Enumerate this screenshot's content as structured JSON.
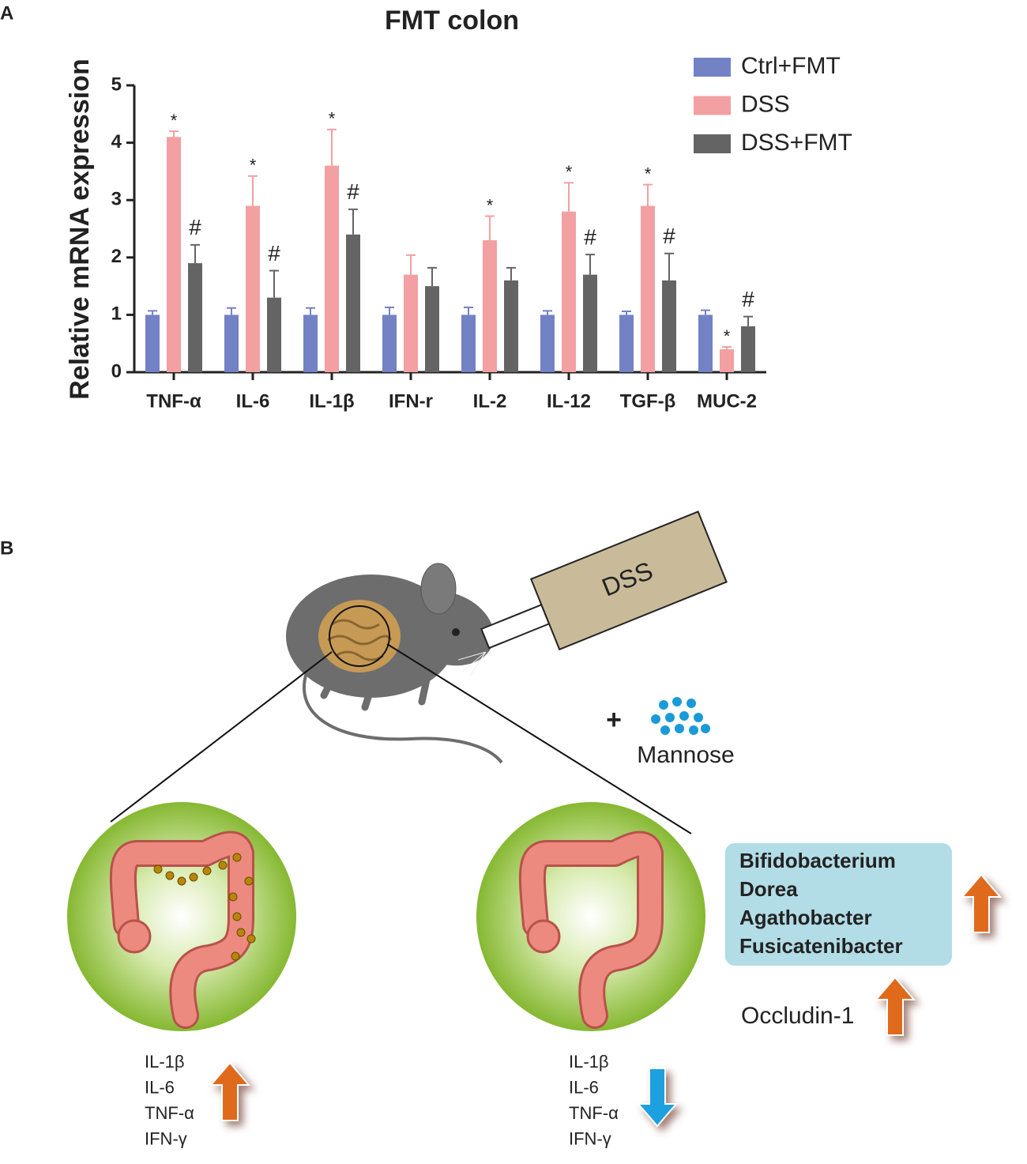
{
  "panel_labels": [
    "A",
    "B"
  ],
  "chart_data": {
    "type": "bar",
    "title": "FMT colon",
    "y_label": "Relative mRNA expression",
    "categories": [
      "TNF-α",
      "IL-6",
      "IL-1β",
      "IFN-r",
      "IL-2",
      "IL-12",
      "TGF-β",
      "MUC-2"
    ],
    "series": [
      {
        "name": "Ctrl+FMT",
        "color": "#7382c4",
        "values": [
          1,
          1,
          1,
          1,
          1,
          1,
          1,
          1
        ],
        "errors": [
          0.07,
          0.12,
          0.12,
          0.13,
          0.13,
          0.07,
          0.06,
          0.08
        ],
        "annotations": [
          null,
          null,
          null,
          null,
          null,
          null,
          null,
          null
        ]
      },
      {
        "name": "DSS",
        "color": "#f2a0a2",
        "values": [
          4.1,
          2.9,
          3.6,
          1.7,
          2.3,
          2.8,
          2.9,
          0.4
        ],
        "errors": [
          0.1,
          0.52,
          0.63,
          0.34,
          0.42,
          0.5,
          0.37,
          0.04
        ],
        "annotations": [
          "*",
          "*",
          "*",
          null,
          "*",
          "*",
          "*",
          "*"
        ]
      },
      {
        "name": "DSS+FMT",
        "color": "#646464",
        "values": [
          1.9,
          1.3,
          2.4,
          1.5,
          1.6,
          1.7,
          1.6,
          0.8
        ],
        "errors": [
          0.32,
          0.47,
          0.44,
          0.32,
          0.22,
          0.35,
          0.47,
          0.17
        ],
        "annotations": [
          "#",
          "#",
          "#",
          null,
          null,
          "#",
          "#",
          "#"
        ]
      }
    ],
    "ylim": [
      0,
      5
    ],
    "yticks": [
      0,
      1,
      2,
      3,
      4,
      5
    ]
  },
  "diagram": {
    "syringe_label": "DSS",
    "plus": "+",
    "supplement": "Mannose",
    "left_markers": [
      "IL-1β",
      "IL-6",
      "TNF-α",
      "IFN-γ"
    ],
    "right_markers": [
      "IL-1β",
      "IL-6",
      "TNF-α",
      "IFN-γ"
    ],
    "bacteria": [
      "Bifidobacterium",
      "Dorea",
      "Agathobacter",
      "Fusicatenibacter"
    ],
    "barrier_protein": "Occludin-1"
  }
}
